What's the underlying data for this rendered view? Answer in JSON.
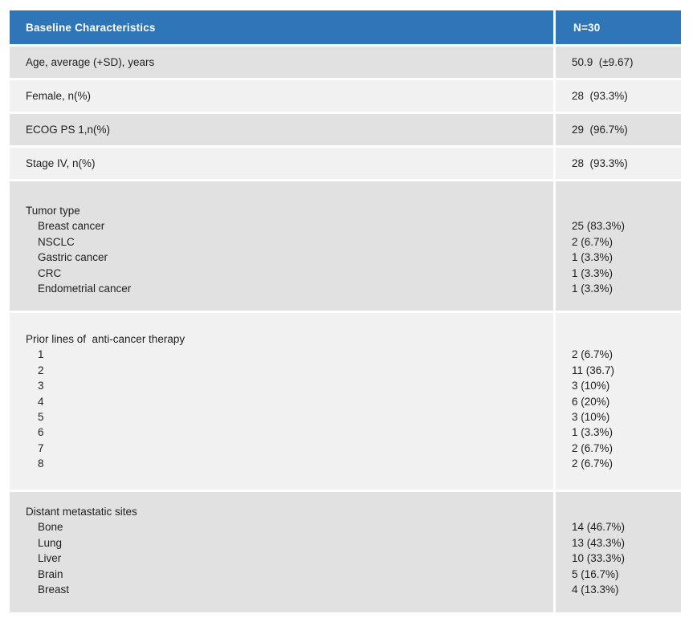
{
  "colors": {
    "header_bg": "#2e76b8",
    "header_text": "#ffffff",
    "row_dark": "#e1e1e1",
    "row_light": "#f1f1f1",
    "body_text": "#1f1f1f",
    "page_bg": "#ffffff"
  },
  "chart_data": {
    "type": "table",
    "title": "Baseline Characteristics",
    "columns": [
      "Baseline Characteristics",
      "N=30"
    ],
    "n_total": 30,
    "simple_rows": [
      {
        "label": "Age, average (+SD), years",
        "value": "50.9  (±9.67)"
      },
      {
        "label": "Female, n(%)",
        "value": "28  (93.3%)"
      },
      {
        "label": "ECOG PS 1,n(%)",
        "value": "29  (96.7%)"
      },
      {
        "label": "Stage IV, n(%)",
        "value": "28  (93.3%)"
      }
    ],
    "group_rows": [
      {
        "title": "Tumor type",
        "items": [
          {
            "label": "Breast cancer",
            "value": "25 (83.3%)"
          },
          {
            "label": "NSCLC",
            "value": "2 (6.7%)"
          },
          {
            "label": "Gastric cancer",
            "value": "1 (3.3%)"
          },
          {
            "label": "CRC",
            "value": "1 (3.3%)"
          },
          {
            "label": "Endometrial cancer",
            "value": "1 (3.3%)"
          }
        ]
      },
      {
        "title": "Prior lines of  anti-cancer therapy",
        "items": [
          {
            "label": "1",
            "value": "2 (6.7%)"
          },
          {
            "label": "2",
            "value": "11 (36.7)"
          },
          {
            "label": "3",
            "value": "3 (10%)"
          },
          {
            "label": "4",
            "value": "6 (20%)"
          },
          {
            "label": "5",
            "value": "3 (10%)"
          },
          {
            "label": "6",
            "value": "1 (3.3%)"
          },
          {
            "label": "7",
            "value": "2 (6.7%)"
          },
          {
            "label": "8",
            "value": "2 (6.7%)"
          }
        ]
      },
      {
        "title": "Distant metastatic sites",
        "items": [
          {
            "label": "Bone",
            "value": "14 (46.7%)"
          },
          {
            "label": "Lung",
            "value": "13 (43.3%)"
          },
          {
            "label": "Liver",
            "value": "10 (33.3%)"
          },
          {
            "label": "Brain",
            "value": "5 (16.7%)"
          },
          {
            "label": "Breast",
            "value": "4 (13.3%)"
          }
        ]
      }
    ]
  }
}
